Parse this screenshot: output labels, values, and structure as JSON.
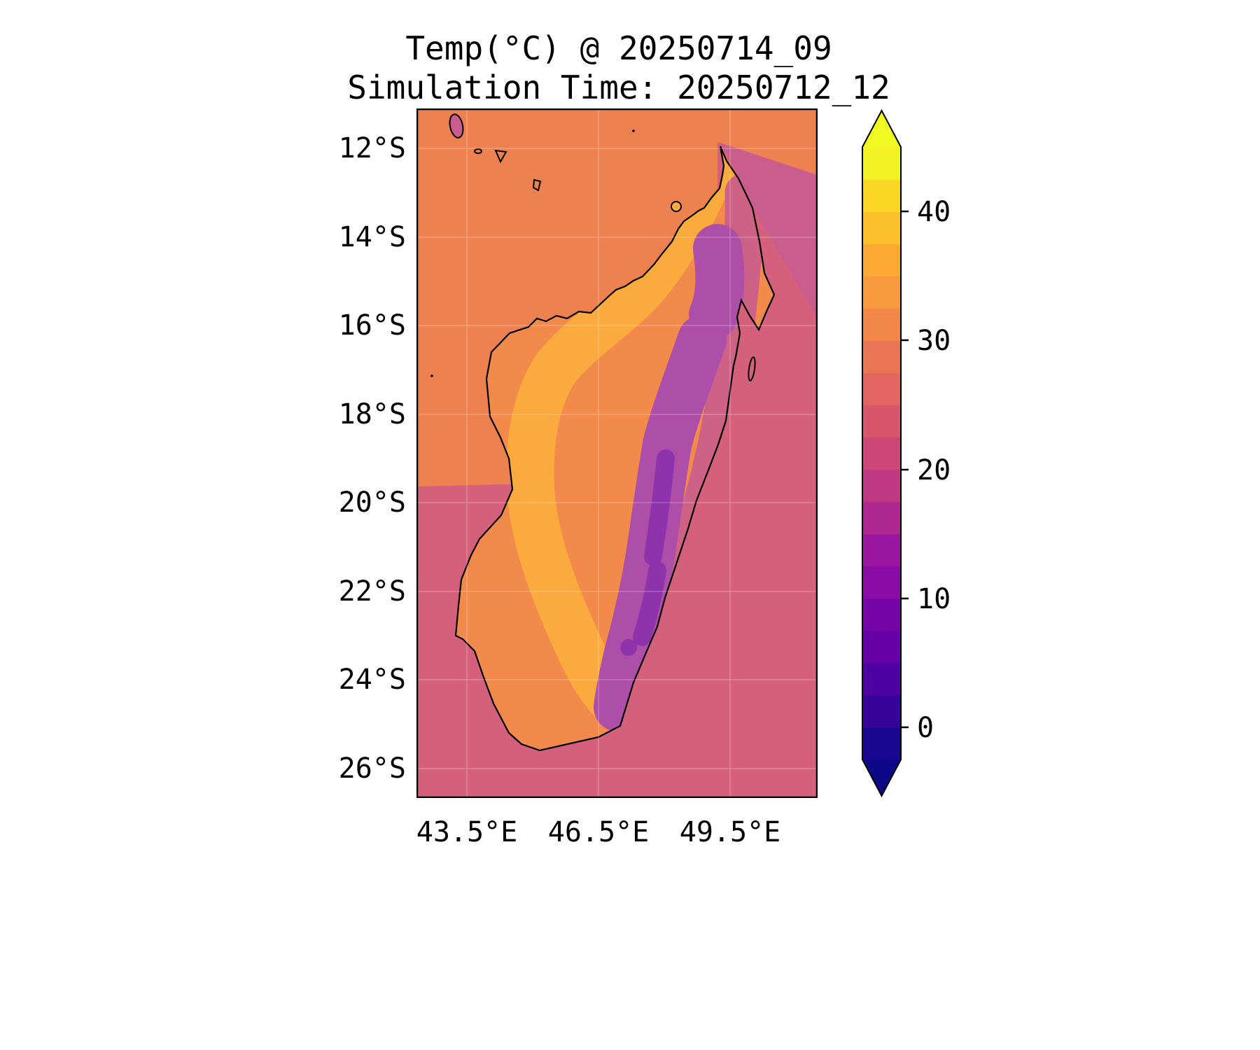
{
  "title": {
    "line1": "Temp(°C) @ 20250714_09",
    "line2": "Simulation Time: 20250712_12"
  },
  "axes": {
    "lat_labels": [
      "12°S",
      "14°S",
      "16°S",
      "18°S",
      "20°S",
      "22°S",
      "24°S",
      "26°S"
    ],
    "lon_labels": [
      "43.5°E",
      "46.5°E",
      "49.5°E"
    ]
  },
  "colorbar": {
    "tick_labels": [
      "40",
      "30",
      "20",
      "10",
      "0"
    ],
    "band_colors": [
      "#1a0790",
      "#360499",
      "#4f02a2",
      "#6501a7",
      "#7505a7",
      "#8a0ba5",
      "#9b16a0",
      "#af2891",
      "#be3884",
      "#cc4778",
      "#d7566c",
      "#e26561",
      "#eb7655",
      "#f38649",
      "#f8993e",
      "#fca934",
      "#fcc12a",
      "#f9d724",
      "#f3f222"
    ],
    "under_color": "#0d0887",
    "over_color": "#f0f921"
  },
  "map_colors": {
    "ocean_warm": "#ee8150",
    "ocean_cool": "#d4607c",
    "ocean_mid": "#c95e8e",
    "island_base": "#f28a4c",
    "island_hot": "#fbaa3e",
    "highland_purple": "#ad4ea8",
    "highland_deep": "#8e33ab",
    "east_band": "#cd6186",
    "coastline": "#000000",
    "gridline": "#ffffff"
  },
  "chart_data": {
    "type": "heatmap",
    "title": "Temp(°C) @ 20250714_09",
    "subtitle": "Simulation Time: 20250712_12",
    "variable": "Temp(°C)",
    "region": "Madagascar and surrounding ocean",
    "x_axis": {
      "label": "longitude",
      "ticks": [
        "43.5°E",
        "46.5°E",
        "49.5°E"
      ],
      "range_deg_east": [
        42.3,
        51.5
      ]
    },
    "y_axis": {
      "label": "latitude",
      "ticks": [
        "12°S",
        "14°S",
        "16°S",
        "18°S",
        "20°S",
        "22°S",
        "24°S",
        "26°S"
      ],
      "range_deg_south": [
        11.1,
        26.7
      ]
    },
    "colorbar": {
      "ticks": [
        0,
        10,
        20,
        30,
        40
      ],
      "level_step": 2.5,
      "range": [
        -2.5,
        45
      ],
      "extend": "both",
      "colormap": "plasma"
    },
    "grid": "faint graticule every 2° latitude and 3° longitude",
    "readings": [
      {
        "area": "ocean northwest and north of Madagascar",
        "approx_temp_c": 29
      },
      {
        "area": "ocean south and east of Madagascar",
        "approx_temp_c": 23
      },
      {
        "area": "ocean wedge immediately northeast of island",
        "approx_temp_c": 26
      },
      {
        "area": "west coastal lowlands band",
        "approx_temp_c": 32
      },
      {
        "area": "island base lowlands / south",
        "approx_temp_c": 30
      },
      {
        "area": "central highlands spine",
        "approx_temp_c": 14
      },
      {
        "area": "coldest plateau cores",
        "approx_temp_c": 9
      },
      {
        "area": "northern massif (Tsaratanana)",
        "approx_temp_c": 15
      },
      {
        "area": "east coast strip",
        "approx_temp_c": 22
      }
    ]
  }
}
